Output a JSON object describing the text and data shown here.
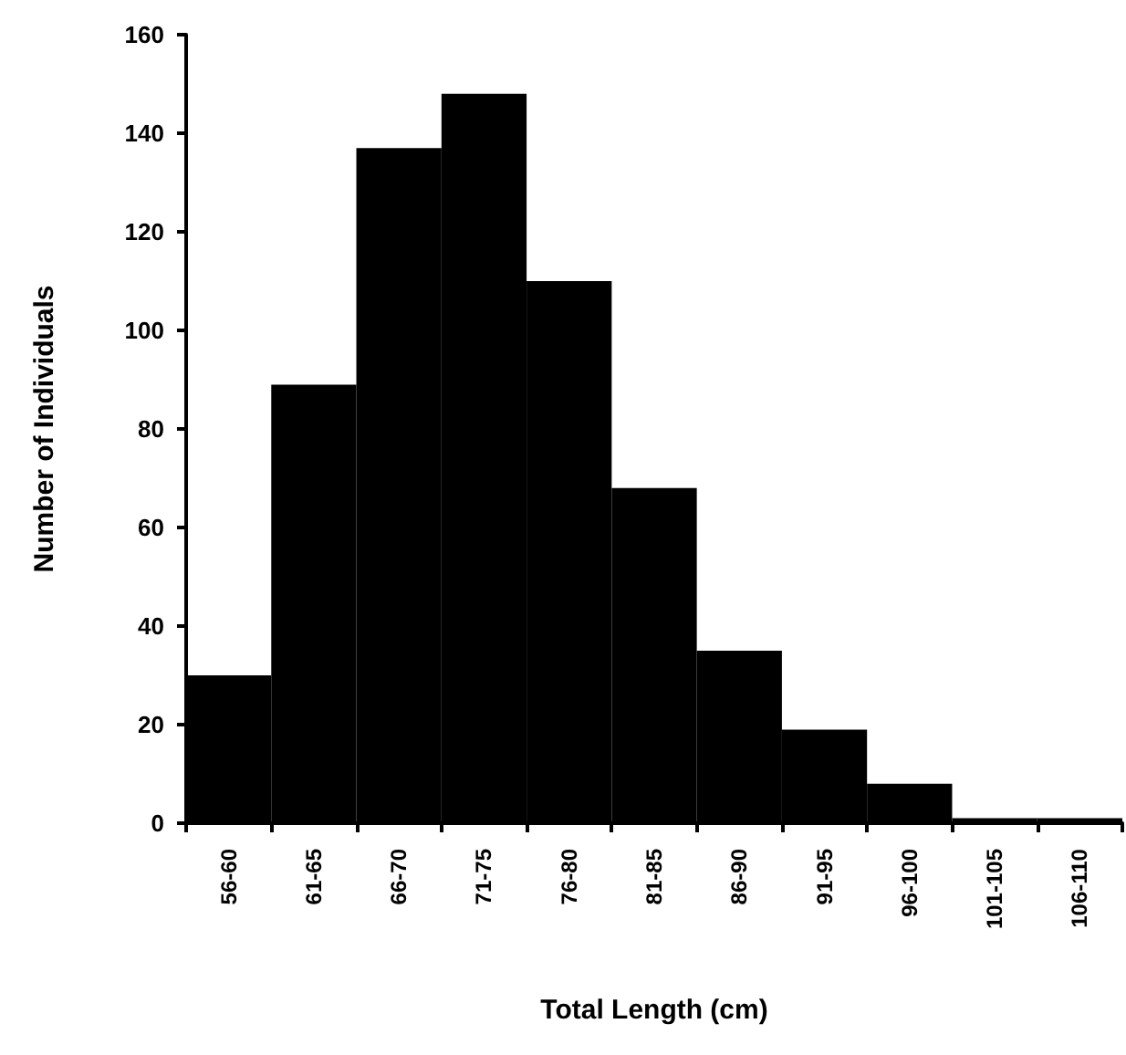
{
  "chart_data": {
    "type": "bar",
    "xlabel": "Total Length (cm)",
    "ylabel": "Number of Individuals",
    "categories": [
      "56-60",
      "61-65",
      "66-70",
      "71-75",
      "76-80",
      "81-85",
      "86-90",
      "91-95",
      "96-100",
      "101-105",
      "106-110"
    ],
    "values": [
      30,
      89,
      137,
      148,
      110,
      68,
      35,
      19,
      8,
      1,
      1
    ],
    "color": "#000000",
    "ylim": [
      0,
      160
    ],
    "yticks": [
      0,
      20,
      40,
      60,
      80,
      100,
      120,
      140,
      160
    ]
  }
}
